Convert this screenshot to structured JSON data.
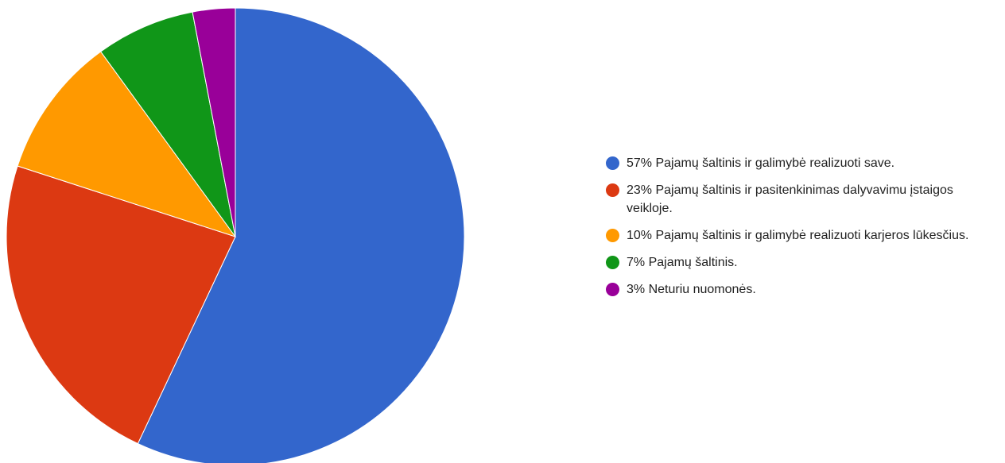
{
  "chart_data": {
    "type": "pie",
    "categories": [
      "Pajamų šaltinis ir galimybė realizuoti save.",
      "Pajamų šaltinis ir pasitenkinimas dalyvavimu įstaigos veikloje.",
      "Pajamų šaltinis ir galimybė realizuoti karjeros lūkesčius.",
      "Pajamų šaltinis.",
      "Neturiu nuomonės."
    ],
    "values": [
      57,
      23,
      10,
      7,
      3
    ],
    "value_labels": [
      "57%",
      "23%",
      "10%",
      "7%",
      "3%"
    ],
    "colors": [
      "#3366cc",
      "#dc3912",
      "#ff9900",
      "#109618",
      "#990099"
    ]
  }
}
